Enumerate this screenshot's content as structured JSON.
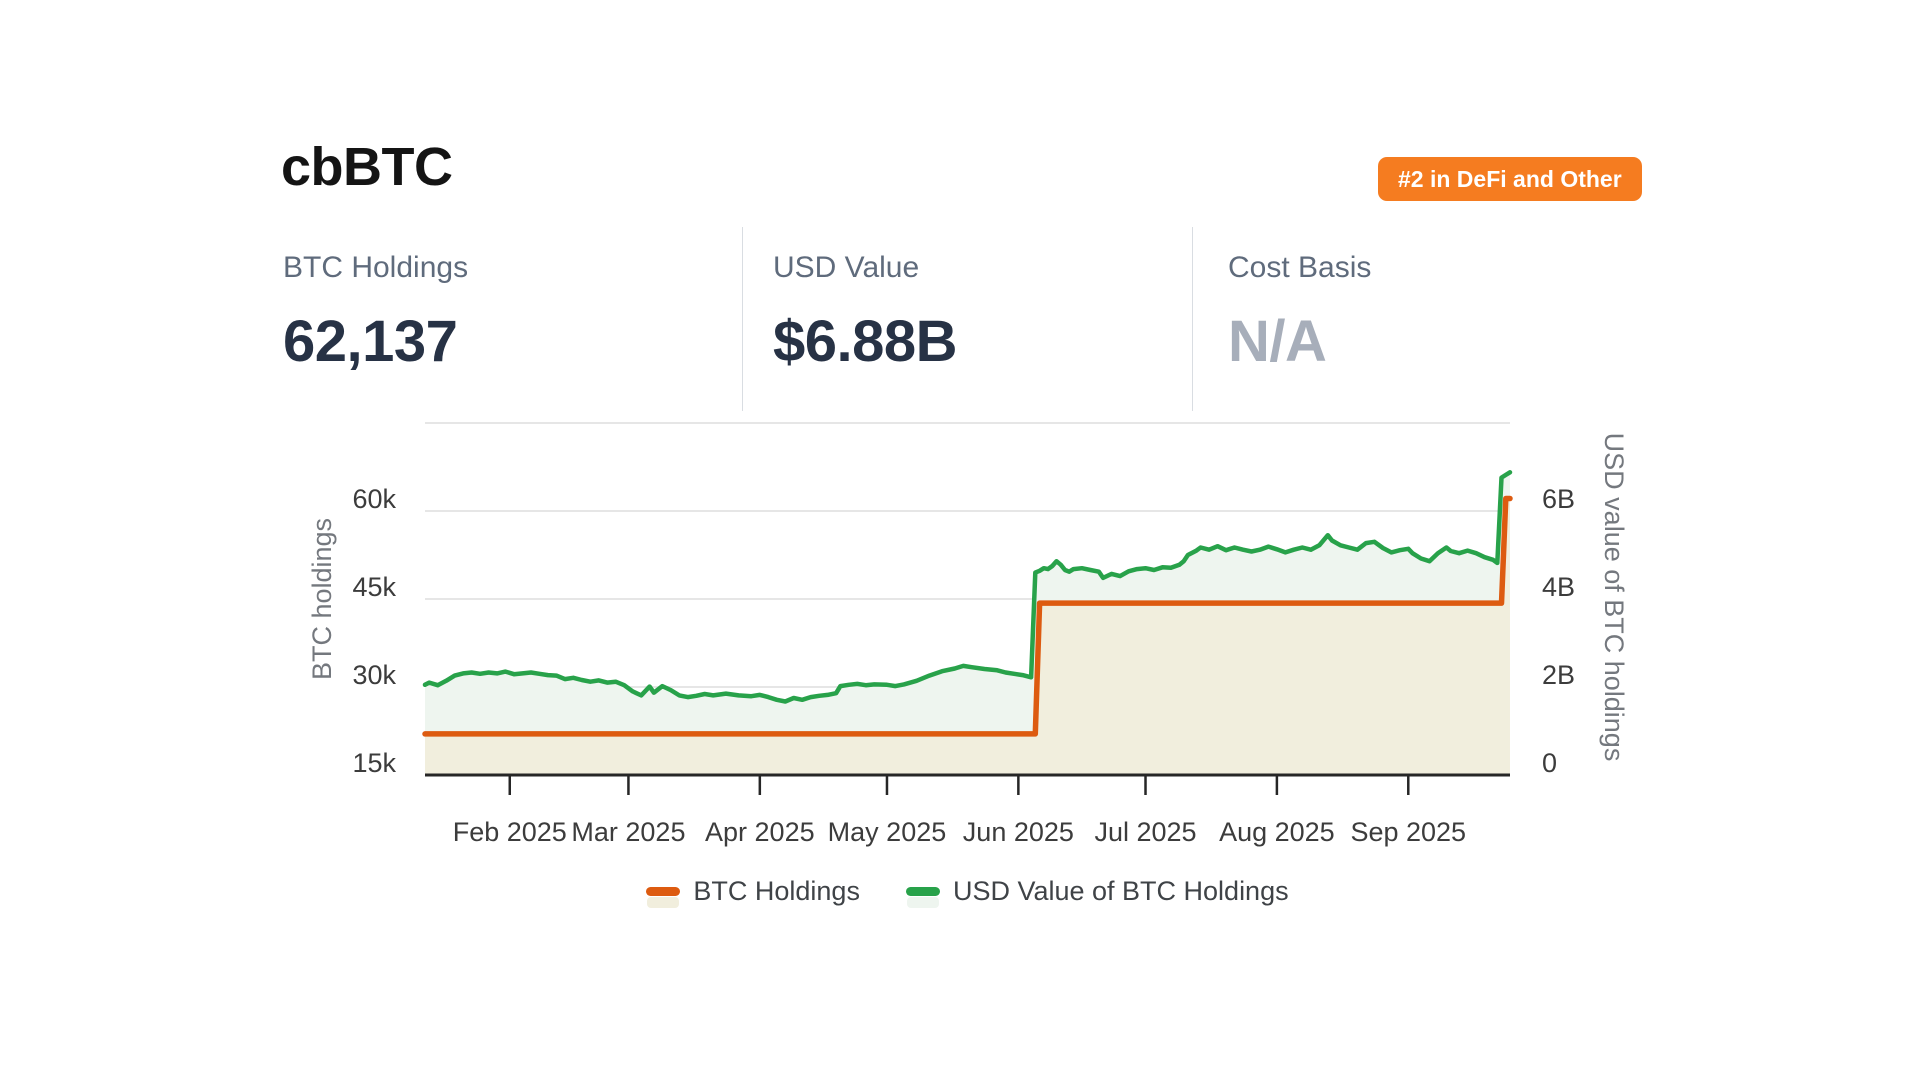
{
  "header": {
    "title": "cbBTC",
    "badge": "#2 in DeFi and Other",
    "badge_color": "#f57c20"
  },
  "stats": [
    {
      "label": "BTC Holdings",
      "value": "62,137"
    },
    {
      "label": "USD Value",
      "value": "$6.88B"
    },
    {
      "label": "Cost Basis",
      "value": "N/A"
    }
  ],
  "chart_data": {
    "type": "line",
    "title": "",
    "grid": true,
    "legend_position": "bottom",
    "colors": {
      "grid": "#e6e6e6",
      "axis": "#262626",
      "tick_text": "#3c3c3c",
      "axis_title_text": "#74787e"
    },
    "x_axis": {
      "range": [
        "2025-01-12",
        "2025-09-25"
      ],
      "ticks": [
        {
          "label": "Feb 2025",
          "date": "2025-02-01"
        },
        {
          "label": "Mar 2025",
          "date": "2025-03-01"
        },
        {
          "label": "Apr 2025",
          "date": "2025-04-01"
        },
        {
          "label": "May 2025",
          "date": "2025-05-01"
        },
        {
          "label": "Jun 2025",
          "date": "2025-06-01"
        },
        {
          "label": "Jul 2025",
          "date": "2025-07-01"
        },
        {
          "label": "Aug 2025",
          "date": "2025-08-01"
        },
        {
          "label": "Sep 2025",
          "date": "2025-09-01"
        }
      ]
    },
    "y_left": {
      "title": "BTC holdings",
      "range": [
        15000,
        75000
      ],
      "ticks": [
        {
          "label": "15k",
          "value": 15000
        },
        {
          "label": "30k",
          "value": 30000
        },
        {
          "label": "45k",
          "value": 45000
        },
        {
          "label": "60k",
          "value": 60000
        }
      ]
    },
    "y_right": {
      "title": "USD value of BTC holdings",
      "unit": "billions USD",
      "range": [
        0,
        8
      ],
      "ticks": [
        {
          "label": "0",
          "value": 0
        },
        {
          "label": "2B",
          "value": 2
        },
        {
          "label": "4B",
          "value": 4
        },
        {
          "label": "6B",
          "value": 6
        }
      ]
    },
    "series": [
      {
        "name": "BTC Holdings",
        "axis": "left",
        "color": "#dd5b10",
        "fill": "#f1eedd",
        "points": [
          [
            "2025-01-12",
            22000
          ],
          [
            "2025-06-05",
            22000
          ],
          [
            "2025-06-06",
            44300
          ],
          [
            "2025-09-23",
            44300
          ],
          [
            "2025-09-24",
            62137
          ],
          [
            "2025-09-25",
            62137
          ]
        ]
      },
      {
        "name": "USD Value of BTC Holdings",
        "axis": "right",
        "color": "#28a24a",
        "fill": "#eef5ef",
        "points": [
          [
            "2025-01-12",
            2.05
          ],
          [
            "2025-01-13",
            2.1
          ],
          [
            "2025-01-15",
            2.04
          ],
          [
            "2025-01-17",
            2.14
          ],
          [
            "2025-01-19",
            2.26
          ],
          [
            "2025-01-21",
            2.31
          ],
          [
            "2025-01-23",
            2.33
          ],
          [
            "2025-01-25",
            2.3
          ],
          [
            "2025-01-27",
            2.33
          ],
          [
            "2025-01-29",
            2.31
          ],
          [
            "2025-01-31",
            2.35
          ],
          [
            "2025-02-02",
            2.29
          ],
          [
            "2025-02-04",
            2.31
          ],
          [
            "2025-02-06",
            2.33
          ],
          [
            "2025-02-08",
            2.3
          ],
          [
            "2025-02-10",
            2.27
          ],
          [
            "2025-02-12",
            2.26
          ],
          [
            "2025-02-14",
            2.18
          ],
          [
            "2025-02-16",
            2.21
          ],
          [
            "2025-02-18",
            2.16
          ],
          [
            "2025-02-20",
            2.12
          ],
          [
            "2025-02-22",
            2.15
          ],
          [
            "2025-02-24",
            2.1
          ],
          [
            "2025-02-26",
            2.12
          ],
          [
            "2025-02-28",
            2.04
          ],
          [
            "2025-03-02",
            1.9
          ],
          [
            "2025-03-04",
            1.81
          ],
          [
            "2025-03-06",
            2.01
          ],
          [
            "2025-03-07",
            1.87
          ],
          [
            "2025-03-09",
            2.02
          ],
          [
            "2025-03-11",
            1.93
          ],
          [
            "2025-03-13",
            1.81
          ],
          [
            "2025-03-15",
            1.77
          ],
          [
            "2025-03-17",
            1.8
          ],
          [
            "2025-03-19",
            1.84
          ],
          [
            "2025-03-21",
            1.81
          ],
          [
            "2025-03-24",
            1.85
          ],
          [
            "2025-03-27",
            1.81
          ],
          [
            "2025-03-30",
            1.79
          ],
          [
            "2025-04-01",
            1.82
          ],
          [
            "2025-04-03",
            1.77
          ],
          [
            "2025-04-05",
            1.71
          ],
          [
            "2025-04-07",
            1.67
          ],
          [
            "2025-04-09",
            1.75
          ],
          [
            "2025-04-11",
            1.71
          ],
          [
            "2025-04-13",
            1.77
          ],
          [
            "2025-04-15",
            1.8
          ],
          [
            "2025-04-17",
            1.82
          ],
          [
            "2025-04-19",
            1.86
          ],
          [
            "2025-04-20",
            2.02
          ],
          [
            "2025-04-22",
            2.05
          ],
          [
            "2025-04-24",
            2.07
          ],
          [
            "2025-04-26",
            2.04
          ],
          [
            "2025-04-28",
            2.06
          ],
          [
            "2025-05-01",
            2.05
          ],
          [
            "2025-05-03",
            2.02
          ],
          [
            "2025-05-05",
            2.06
          ],
          [
            "2025-05-08",
            2.14
          ],
          [
            "2025-05-11",
            2.26
          ],
          [
            "2025-05-14",
            2.36
          ],
          [
            "2025-05-17",
            2.42
          ],
          [
            "2025-05-19",
            2.48
          ],
          [
            "2025-05-21",
            2.45
          ],
          [
            "2025-05-24",
            2.41
          ],
          [
            "2025-05-27",
            2.38
          ],
          [
            "2025-05-29",
            2.33
          ],
          [
            "2025-05-31",
            2.3
          ],
          [
            "2025-06-02",
            2.27
          ],
          [
            "2025-06-04",
            2.22
          ],
          [
            "2025-06-05",
            4.6
          ],
          [
            "2025-06-06",
            4.64
          ],
          [
            "2025-06-07",
            4.7
          ],
          [
            "2025-06-08",
            4.68
          ],
          [
            "2025-06-09",
            4.75
          ],
          [
            "2025-06-10",
            4.86
          ],
          [
            "2025-06-11",
            4.78
          ],
          [
            "2025-06-12",
            4.66
          ],
          [
            "2025-06-13",
            4.62
          ],
          [
            "2025-06-14",
            4.68
          ],
          [
            "2025-06-16",
            4.7
          ],
          [
            "2025-06-18",
            4.66
          ],
          [
            "2025-06-20",
            4.62
          ],
          [
            "2025-06-21",
            4.48
          ],
          [
            "2025-06-23",
            4.57
          ],
          [
            "2025-06-25",
            4.52
          ],
          [
            "2025-06-27",
            4.63
          ],
          [
            "2025-06-29",
            4.68
          ],
          [
            "2025-07-01",
            4.7
          ],
          [
            "2025-07-03",
            4.66
          ],
          [
            "2025-07-05",
            4.72
          ],
          [
            "2025-07-07",
            4.71
          ],
          [
            "2025-07-09",
            4.78
          ],
          [
            "2025-07-10",
            4.86
          ],
          [
            "2025-07-11",
            5.0
          ],
          [
            "2025-07-13",
            5.1
          ],
          [
            "2025-07-14",
            5.17
          ],
          [
            "2025-07-16",
            5.12
          ],
          [
            "2025-07-18",
            5.2
          ],
          [
            "2025-07-20",
            5.11
          ],
          [
            "2025-07-22",
            5.17
          ],
          [
            "2025-07-24",
            5.12
          ],
          [
            "2025-07-26",
            5.08
          ],
          [
            "2025-07-28",
            5.12
          ],
          [
            "2025-07-30",
            5.19
          ],
          [
            "2025-08-01",
            5.13
          ],
          [
            "2025-08-03",
            5.06
          ],
          [
            "2025-08-05",
            5.12
          ],
          [
            "2025-08-07",
            5.17
          ],
          [
            "2025-08-09",
            5.12
          ],
          [
            "2025-08-11",
            5.22
          ],
          [
            "2025-08-13",
            5.45
          ],
          [
            "2025-08-14",
            5.33
          ],
          [
            "2025-08-16",
            5.22
          ],
          [
            "2025-08-18",
            5.17
          ],
          [
            "2025-08-20",
            5.12
          ],
          [
            "2025-08-22",
            5.27
          ],
          [
            "2025-08-24",
            5.3
          ],
          [
            "2025-08-26",
            5.16
          ],
          [
            "2025-08-28",
            5.06
          ],
          [
            "2025-08-30",
            5.11
          ],
          [
            "2025-09-01",
            5.14
          ],
          [
            "2025-09-02",
            5.04
          ],
          [
            "2025-09-04",
            4.92
          ],
          [
            "2025-09-06",
            4.86
          ],
          [
            "2025-09-08",
            5.04
          ],
          [
            "2025-09-10",
            5.17
          ],
          [
            "2025-09-11",
            5.09
          ],
          [
            "2025-09-13",
            5.04
          ],
          [
            "2025-09-15",
            5.1
          ],
          [
            "2025-09-17",
            5.04
          ],
          [
            "2025-09-19",
            4.95
          ],
          [
            "2025-09-21",
            4.89
          ],
          [
            "2025-09-22",
            4.82
          ],
          [
            "2025-09-23",
            6.76
          ],
          [
            "2025-09-24",
            6.82
          ],
          [
            "2025-09-25",
            6.88
          ]
        ]
      }
    ]
  }
}
